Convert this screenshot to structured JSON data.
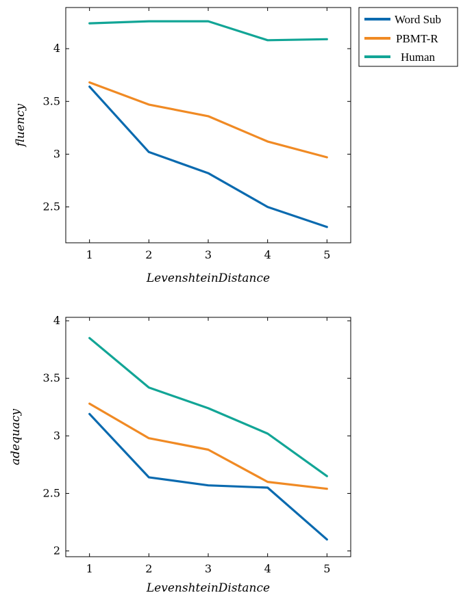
{
  "colors": {
    "word_sub": "#0A6AAF",
    "pbmt_r": "#F08A24",
    "human": "#12A596"
  },
  "legend": {
    "items": [
      {
        "label": "Word Sub",
        "color_key": "word_sub"
      },
      {
        "label": "PBMT-R",
        "color_key": "pbmt_r"
      },
      {
        "label": "Human",
        "color_key": "human"
      }
    ]
  },
  "chart_data": [
    {
      "type": "line",
      "title": "",
      "xlabel": "LevenshteinDistance",
      "ylabel": "fluency",
      "x": [
        1,
        2,
        3,
        4,
        5
      ],
      "xlim": [
        0.6,
        5.4
      ],
      "ylim": [
        2.16,
        4.39
      ],
      "yticks": [
        2.5,
        3,
        3.5,
        4
      ],
      "ytick_labels": [
        "2.5",
        "3",
        "3.5",
        "4"
      ],
      "xtick_labels": [
        "1",
        "2",
        "3",
        "4",
        "5"
      ],
      "grid": false,
      "legend_position": "outside-top-right",
      "series": [
        {
          "name": "Word Sub",
          "color_key": "word_sub",
          "values": [
            3.64,
            3.02,
            2.82,
            2.5,
            2.31
          ]
        },
        {
          "name": "PBMT-R",
          "color_key": "pbmt_r",
          "values": [
            3.68,
            3.47,
            3.36,
            3.12,
            2.97
          ]
        },
        {
          "name": "Human",
          "color_key": "human",
          "values": [
            4.24,
            4.26,
            4.26,
            4.08,
            4.09
          ]
        }
      ]
    },
    {
      "type": "line",
      "title": "",
      "xlabel": "LevenshteinDistance",
      "ylabel": "adequacy",
      "x": [
        1,
        2,
        3,
        4,
        5
      ],
      "xlim": [
        0.6,
        5.4
      ],
      "ylim": [
        1.95,
        4.03
      ],
      "yticks": [
        2,
        2.5,
        3,
        3.5,
        4
      ],
      "ytick_labels": [
        "2",
        "2.5",
        "3",
        "3.5",
        "4"
      ],
      "xtick_labels": [
        "1",
        "2",
        "3",
        "4",
        "5"
      ],
      "grid": false,
      "series": [
        {
          "name": "Word Sub",
          "color_key": "word_sub",
          "values": [
            3.19,
            2.64,
            2.57,
            2.55,
            2.1
          ]
        },
        {
          "name": "PBMT-R",
          "color_key": "pbmt_r",
          "values": [
            3.28,
            2.98,
            2.88,
            2.6,
            2.54
          ]
        },
        {
          "name": "Human",
          "color_key": "human",
          "values": [
            3.85,
            3.42,
            3.24,
            3.02,
            2.65
          ]
        }
      ]
    }
  ]
}
